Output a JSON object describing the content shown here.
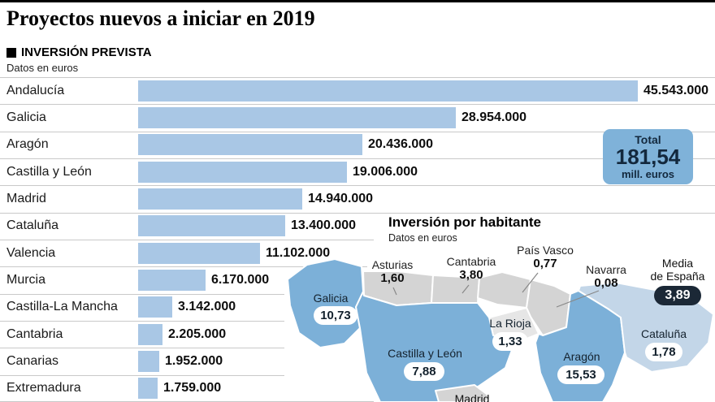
{
  "header": {
    "title": "Proyectos nuevos a iniciar en 2019",
    "legend_label": "INVERSIÓN PREVISTA",
    "units_note": "Datos en euros"
  },
  "total_box": {
    "label": "Total",
    "value": "181,54",
    "unit": "mill. euros"
  },
  "chart_data": [
    {
      "type": "bar",
      "orientation": "horizontal",
      "title": "Inversión prevista — Proyectos nuevos a iniciar en 2019",
      "units": "euros",
      "categories": [
        "Andalucía",
        "Galicia",
        "Aragón",
        "Castilla y León",
        "Madrid",
        "Cataluña",
        "Valencia",
        "Murcia",
        "Castilla-La Mancha",
        "Cantabria",
        "Canarias",
        "Extremadura"
      ],
      "values": [
        45543000,
        28954000,
        20436000,
        19006000,
        14940000,
        13400000,
        11102000,
        6170000,
        3142000,
        2205000,
        1952000,
        1759000
      ],
      "value_labels": [
        "45.543.000",
        "28.954.000",
        "20.436.000",
        "19.006.000",
        "14.940.000",
        "13.400.000",
        "11.102.000",
        "6.170.000",
        "3.142.000",
        "2.205.000",
        "1.952.000",
        "1.759.000"
      ],
      "xlim": [
        0,
        45543000
      ],
      "grid": false,
      "total": "181,54 mill. euros"
    },
    {
      "type": "map",
      "title": "Inversión por habitante",
      "subtitle": "Datos en euros",
      "units": "euros por habitante",
      "regions": [
        {
          "name": "Galicia",
          "value": 10.73,
          "label": "10,73",
          "highlighted": true
        },
        {
          "name": "Asturias",
          "value": 1.6,
          "label": "1,60",
          "highlighted": false
        },
        {
          "name": "Cantabria",
          "value": 3.8,
          "label": "3,80",
          "highlighted": false
        },
        {
          "name": "País Vasco",
          "value": 0.77,
          "label": "0,77",
          "highlighted": false
        },
        {
          "name": "Navarra",
          "value": 0.08,
          "label": "0,08",
          "highlighted": false
        },
        {
          "name": "La Rioja",
          "value": 1.33,
          "label": "1,33",
          "highlighted": false
        },
        {
          "name": "Castilla y León",
          "value": 7.88,
          "label": "7,88",
          "highlighted": true
        },
        {
          "name": "Aragón",
          "value": 15.53,
          "label": "15,53",
          "highlighted": true
        },
        {
          "name": "Cataluña",
          "value": 1.78,
          "label": "1,78",
          "highlighted": false
        },
        {
          "name": "Madrid"
        }
      ],
      "media_espana": {
        "label": "Media de España",
        "value": 3.89,
        "value_label": "3,89"
      }
    }
  ],
  "map": {
    "title": "Inversión por habitante",
    "subtitle": "Datos en euros",
    "callouts": [
      {
        "name": "Asturias",
        "value": "1,60"
      },
      {
        "name": "Cantabria",
        "value": "3,80"
      },
      {
        "name": "País Vasco",
        "value": "0,77"
      },
      {
        "name": "Navarra",
        "value": "0,08"
      }
    ],
    "regions": [
      {
        "name": "Galicia",
        "value": "10,73"
      },
      {
        "name": "Castilla y León",
        "value": "7,88"
      },
      {
        "name": "La Rioja",
        "value": "1,33"
      },
      {
        "name": "Aragón",
        "value": "15,53"
      },
      {
        "name": "Cataluña",
        "value": "1,78"
      }
    ],
    "media": {
      "line1": "Media",
      "line2": "de España",
      "value": "3,89"
    },
    "partial_label": "Madrid"
  },
  "colors": {
    "bar_fill": "#a9c7e5",
    "map_highlight": "#7cb0d8",
    "map_muted": "#d4d4d4",
    "map_light_blue": "#c3d6e8",
    "total_box": "#7fb2d9",
    "dark_badge": "#1b2836",
    "separator": "#c9c9c9"
  }
}
